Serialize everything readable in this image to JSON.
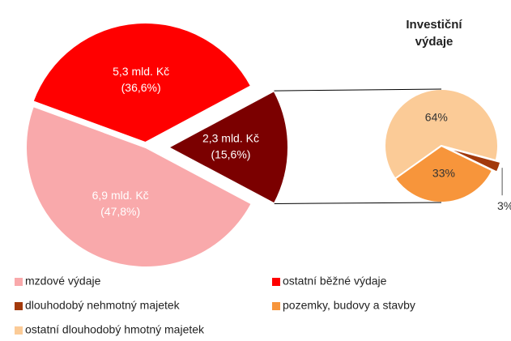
{
  "chart_data": [
    {
      "type": "pie",
      "categories": [
        "mzdové výdaje",
        "ostatní běžné výdaje",
        null
      ],
      "values": [
        47.8,
        36.6,
        15.6
      ],
      "value_labels": [
        "(47,8%)",
        "(36,6%)",
        "(15,6%)"
      ],
      "amount_labels": [
        "6,9 mld. Kč",
        "5,3 mld. Kč",
        "2,3 mld. Kč"
      ],
      "colors": [
        "#f9a9ab",
        "#ff0000",
        "#7b0000"
      ]
    },
    {
      "type": "pie",
      "title": "Investiční výdaje",
      "categories": [
        "ostatní dlouhodobý hmotný majetek",
        "pozemky, budovy a stavby",
        "dlouhodobý nehmotný majetek"
      ],
      "values": [
        64,
        33,
        3
      ],
      "value_labels": [
        "64%",
        "33%",
        "3%"
      ],
      "colors": [
        "#fbcb97",
        "#f7953b",
        "#a33a0c"
      ]
    }
  ]
}
